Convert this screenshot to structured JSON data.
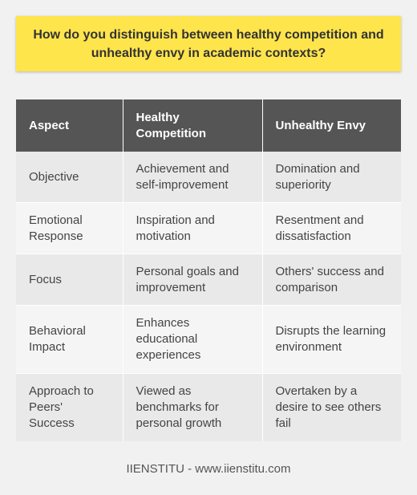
{
  "title": "How do you distinguish between healthy competition and unhealthy envy in academic contexts?",
  "table": {
    "headers": [
      "Aspect",
      "Healthy Competition",
      "Unhealthy Envy"
    ],
    "rows": [
      [
        "Objective",
        "Achievement and self-improvement",
        "Domination and superiority"
      ],
      [
        "Emotional Response",
        "Inspiration and motivation",
        "Resentment and dissatisfaction"
      ],
      [
        "Focus",
        "Personal goals and improvement",
        "Others' success and comparison"
      ],
      [
        "Behavioral Impact",
        "Enhances educational experiences",
        "Disrupts the learning environment"
      ],
      [
        "Approach to Peers' Success",
        "Viewed as benchmarks for personal growth",
        "Overtaken by a desire to see others fail"
      ]
    ]
  },
  "footer": "IIENSTITU - www.iienstitu.com",
  "colors": {
    "title_background": "#ffe54c",
    "header_background": "#555555",
    "page_background": "#f1f1f1"
  }
}
